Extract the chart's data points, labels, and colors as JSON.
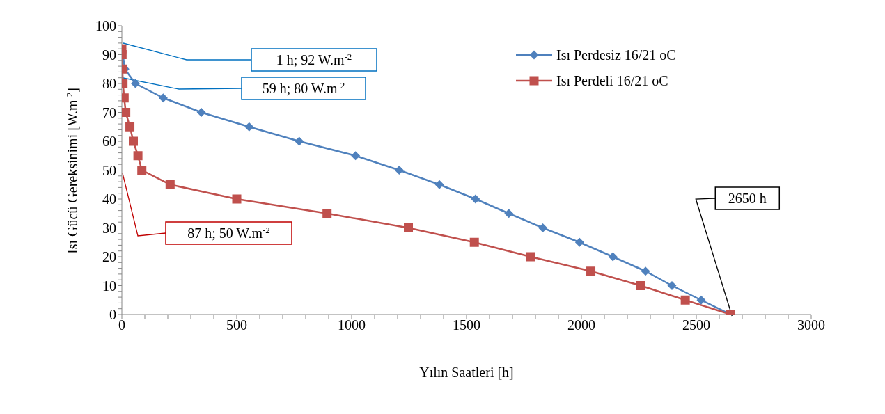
{
  "chart_data": {
    "type": "line",
    "xlabel": "Yılın Saatleri [h]",
    "ylabel": "Isı Gücü Gereksinimi [W.m$^{-2}$]",
    "xlim": [
      0,
      3000
    ],
    "ylim": [
      0,
      100
    ],
    "xticks": [
      0,
      {
        "value": 100,
        "label": null
      },
      {
        "value": 200,
        "label": null
      },
      {
        "value": 300,
        "label": null
      },
      {
        "value": 400,
        "label": null
      },
      500,
      {
        "value": 600,
        "label": null
      },
      {
        "value": 700,
        "label": null
      },
      {
        "value": 800,
        "label": null
      },
      {
        "value": 900,
        "label": null
      },
      1000,
      {
        "value": 1100,
        "label": null
      },
      {
        "value": 1200,
        "label": null
      },
      {
        "value": 1300,
        "label": null
      },
      {
        "value": 1400,
        "label": null
      },
      1500,
      {
        "value": 1600,
        "label": null
      },
      {
        "value": 1700,
        "label": null
      },
      {
        "value": 1800,
        "label": null
      },
      {
        "value": 1900,
        "label": null
      },
      2000,
      {
        "value": 2100,
        "label": null
      },
      {
        "value": 2200,
        "label": null
      },
      {
        "value": 2300,
        "label": null
      },
      {
        "value": 2400,
        "label": null
      },
      2500,
      {
        "value": 2600,
        "label": null
      },
      {
        "value": 2700,
        "label": null
      },
      {
        "value": 2800,
        "label": null
      },
      {
        "value": 2900,
        "label": null
      },
      3000
    ],
    "yticks": [
      0,
      {
        "value": 2,
        "label": null
      },
      {
        "value": 4,
        "label": null
      },
      {
        "value": 6,
        "label": null
      },
      {
        "value": 8,
        "label": null
      },
      10,
      {
        "value": 12,
        "label": null
      },
      {
        "value": 14,
        "label": null
      },
      {
        "value": 16,
        "label": null
      },
      {
        "value": 18,
        "label": null
      },
      20,
      {
        "value": 22,
        "label": null
      },
      {
        "value": 24,
        "label": null
      },
      {
        "value": 26,
        "label": null
      },
      {
        "value": 28,
        "label": null
      },
      30,
      {
        "value": 32,
        "label": null
      },
      {
        "value": 34,
        "label": null
      },
      {
        "value": 36,
        "label": null
      },
      {
        "value": 38,
        "label": null
      },
      40,
      {
        "value": 42,
        "label": null
      },
      {
        "value": 44,
        "label": null
      },
      {
        "value": 46,
        "label": null
      },
      {
        "value": 48,
        "label": null
      },
      50,
      {
        "value": 52,
        "label": null
      },
      {
        "value": 54,
        "label": null
      },
      {
        "value": 56,
        "label": null
      },
      {
        "value": 58,
        "label": null
      },
      60,
      {
        "value": 62,
        "label": null
      },
      {
        "value": 64,
        "label": null
      },
      {
        "value": 66,
        "label": null
      },
      {
        "value": 68,
        "label": null
      },
      70,
      {
        "value": 72,
        "label": null
      },
      {
        "value": 74,
        "label": null
      },
      {
        "value": 76,
        "label": null
      },
      {
        "value": 78,
        "label": null
      },
      80,
      {
        "value": 82,
        "label": null
      },
      {
        "value": 84,
        "label": null
      },
      {
        "value": 86,
        "label": null
      },
      {
        "value": 88,
        "label": null
      },
      90,
      {
        "value": 92,
        "label": null
      },
      {
        "value": 94,
        "label": null
      },
      {
        "value": 96,
        "label": null
      },
      {
        "value": 98,
        "label": null
      },
      100
    ],
    "grid": false,
    "legend": "top right",
    "line_style": "solid",
    "series": [
      {
        "name": "Isı Perdesiz 16/21 oC",
        "color": "#4f81bd",
        "marker": "diamond",
        "x": [
          1,
          13,
          59,
          180,
          346,
          554,
          772,
          1017,
          1207,
          1382,
          1539,
          1684,
          1832,
          1992,
          2137,
          2279,
          2394,
          2521,
          2650
        ],
        "values": [
          92,
          85,
          80,
          75,
          70,
          65,
          60,
          55,
          50,
          45,
          40,
          35,
          30,
          25,
          20,
          15,
          10,
          5,
          0
        ]
      },
      {
        "name": "Isı Perdeli 16/21 oC",
        "color": "#c0504d",
        "marker": "square",
        "x": [
          0,
          1,
          2,
          5,
          10,
          17,
          35,
          50,
          70,
          87,
          210,
          500,
          893,
          1247,
          1534,
          1779,
          2041,
          2258,
          2452,
          2650
        ],
        "values": [
          92,
          90,
          85,
          80,
          75,
          70,
          65,
          60,
          55,
          50,
          45,
          40,
          35,
          30,
          25,
          20,
          15,
          10,
          5,
          0
        ]
      }
    ],
    "annotations": [
      "1 h; 92 W.m$^{-2}$",
      "59 h; 80 W.m$^{-2}$",
      "87 h; 50 W.m$^{-2}$",
      {
        "text": "2650 h",
        "x": 2650,
        "y": 0
      }
    ]
  }
}
